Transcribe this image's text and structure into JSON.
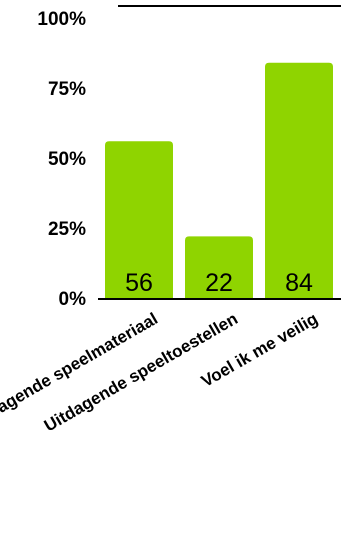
{
  "chart_data": {
    "type": "bar",
    "title": "",
    "xlabel": "",
    "ylabel": "",
    "categories": [
      "Uitdagende speelmateriaal",
      "Uitdagende speeltoestellen",
      "Voel ik me veilig"
    ],
    "values": [
      56,
      22,
      84
    ],
    "data_labels": [
      "56",
      "22",
      "84"
    ],
    "ylim": [
      0,
      100
    ],
    "yticks": [
      0,
      25,
      50,
      75,
      100
    ],
    "ytick_labels": [
      "0%",
      "25%",
      "50%",
      "75%",
      "100%"
    ],
    "bar_color": "#8fd400",
    "grid": false,
    "legend": "none"
  }
}
